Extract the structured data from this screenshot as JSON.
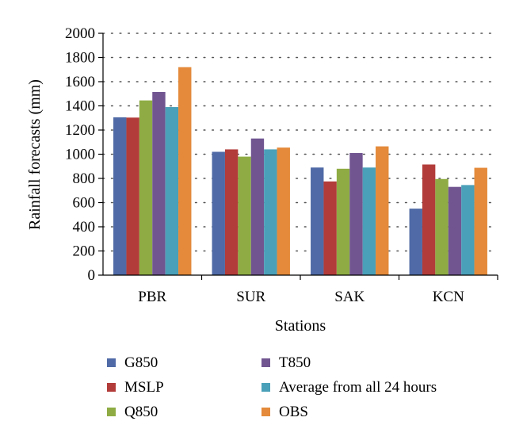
{
  "chart_data": {
    "type": "bar",
    "title": "",
    "xlabel": "Stations",
    "ylabel": "Rainfall forecasts (mm)",
    "categories": [
      "PBR",
      "SUR",
      "SAK",
      "KCN"
    ],
    "ylim": [
      0,
      2000
    ],
    "yticks": [
      0,
      200,
      400,
      600,
      800,
      1000,
      1200,
      1400,
      1600,
      1800,
      2000
    ],
    "grid": "horizontal-dotted",
    "legend_position": "bottom",
    "series": [
      {
        "name": "G850",
        "color": "#4f6aa6",
        "values": [
          1305,
          1020,
          890,
          550
        ]
      },
      {
        "name": "MSLP",
        "color": "#b23c3a",
        "values": [
          1303,
          1040,
          775,
          915
        ]
      },
      {
        "name": "Q850",
        "color": "#8eac43",
        "values": [
          1445,
          980,
          880,
          795
        ]
      },
      {
        "name": "T850",
        "color": "#715591",
        "values": [
          1515,
          1130,
          1010,
          730
        ]
      },
      {
        "name": "Average from all 24 hours",
        "color": "#4aa0b8",
        "values": [
          1390,
          1040,
          890,
          745
        ]
      },
      {
        "name": "OBS",
        "color": "#e48a3a",
        "values": [
          1720,
          1055,
          1065,
          888
        ]
      }
    ]
  }
}
